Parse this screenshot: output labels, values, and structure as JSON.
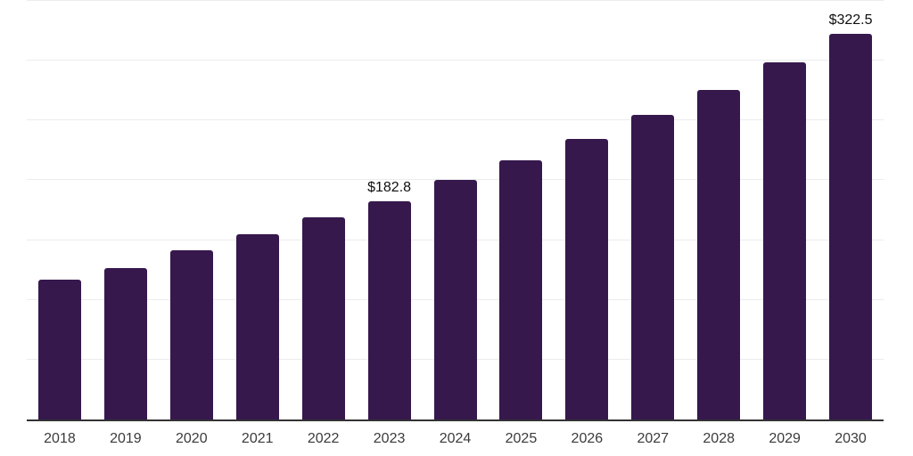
{
  "chart_data": {
    "type": "bar",
    "title": "",
    "xlabel": "",
    "ylabel": "",
    "categories": [
      "2018",
      "2019",
      "2020",
      "2021",
      "2022",
      "2023",
      "2024",
      "2025",
      "2026",
      "2027",
      "2028",
      "2029",
      "2030"
    ],
    "values": [
      116.7,
      126.6,
      141.7,
      154.7,
      168.8,
      182.8,
      200.1,
      216.7,
      234.3,
      254.4,
      275.5,
      298.4,
      322.5
    ],
    "data_labels": [
      "",
      "",
      "",
      "",
      "",
      "$182.8",
      "",
      "",
      "",
      "",
      "",
      "",
      "$322.5"
    ],
    "currency_prefix": "$",
    "ylim": [
      0,
      350
    ],
    "gridline_interval": 50,
    "grid": "horizontal",
    "legend": "none",
    "colors": {
      "bar": "#36184D",
      "axis_line": "#333333",
      "gridline": "#ececec",
      "data_label_text": "#0f0f0f",
      "tick_label_text": "#3b3b3b",
      "background": "#ffffff"
    }
  }
}
